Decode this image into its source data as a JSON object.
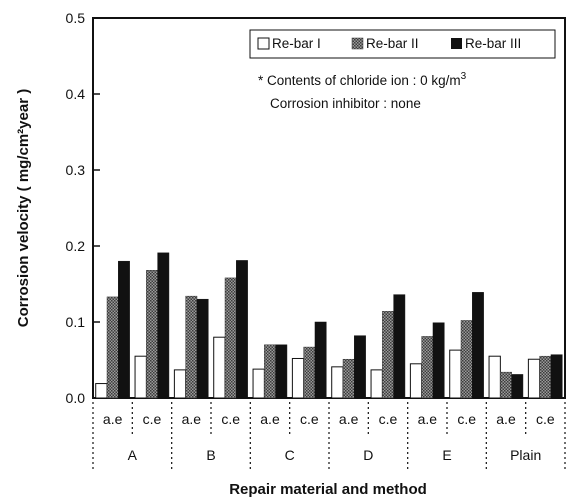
{
  "chart_data": {
    "type": "bar",
    "title": "",
    "xlabel": "Repair material and method",
    "ylabel": "Corrosion velocity ( mg/cm²year )",
    "ylim": [
      0,
      0.5
    ],
    "yticks": [
      "0.0",
      "0.1",
      "0.2",
      "0.3",
      "0.4",
      "0.5"
    ],
    "groups": [
      "A",
      "B",
      "C",
      "D",
      "E",
      "Plain"
    ],
    "subgroups": [
      "a.e",
      "c.e"
    ],
    "categories": [
      "A a.e",
      "A c.e",
      "B a.e",
      "B c.e",
      "C a.e",
      "C c.e",
      "D a.e",
      "D c.e",
      "E a.e",
      "E c.e",
      "Plain a.e",
      "Plain c.e"
    ],
    "series": [
      {
        "name": "Re-bar I",
        "color": "#ffffff",
        "pattern": "none",
        "values": [
          0.019,
          0.055,
          0.037,
          0.08,
          0.038,
          0.052,
          0.041,
          0.037,
          0.045,
          0.063,
          0.055,
          0.051
        ]
      },
      {
        "name": "Re-bar II",
        "color": "#777777",
        "pattern": "checker",
        "values": [
          0.133,
          0.168,
          0.134,
          0.158,
          0.07,
          0.067,
          0.051,
          0.114,
          0.081,
          0.102,
          0.034,
          0.055
        ]
      },
      {
        "name": "Re-bar III",
        "color": "#111111",
        "pattern": "solid",
        "values": [
          0.18,
          0.191,
          0.13,
          0.181,
          0.07,
          0.1,
          0.082,
          0.136,
          0.099,
          0.139,
          0.031,
          0.057
        ]
      }
    ],
    "annotations": {
      "line1_prefix": "* Contents of chloride ion : 0 kg/m",
      "line1_sup": "3",
      "line2": "Corrosion inhibitor : none"
    },
    "legend_position": "top-right",
    "grid": false
  }
}
